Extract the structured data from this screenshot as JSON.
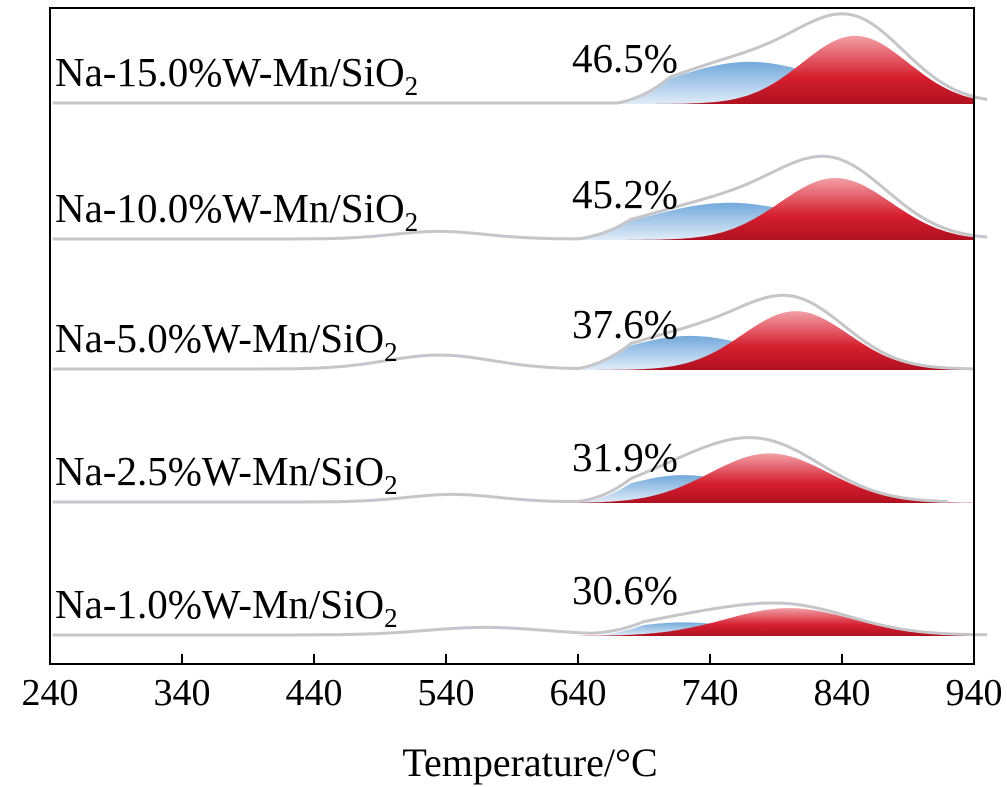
{
  "chart_data": {
    "type": "area",
    "title": "",
    "xlabel": "Temperature/°C",
    "ylabel": "",
    "xlim": [
      240,
      940
    ],
    "xticks": [
      "240",
      "340",
      "440",
      "540",
      "640",
      "740",
      "840",
      "940"
    ],
    "colors": {
      "envelope": "#c8c8cc",
      "low_temp_peak": "#5b9bd5",
      "high_temp_peak": "#d62030"
    },
    "series": [
      {
        "name": "Na-1.0%W-Mn/SiO2",
        "label_main": "Na-1.0%W-Mn/SiO",
        "label_sub": "2",
        "percent": "30.6%",
        "low_peak": {
          "center": 720,
          "width": 45,
          "height": 0.22,
          "start": 650
        },
        "high_peak": {
          "center": 800,
          "width": 48,
          "height": 0.45
        },
        "envelope_bumps": [
          {
            "center": 570,
            "width": 45,
            "height": 0.12
          }
        ],
        "envelope_end": 950
      },
      {
        "name": "Na-2.5%W-Mn/SiO2",
        "label_main": "Na-2.5%W-Mn/SiO",
        "label_sub": "2",
        "percent": "31.9%",
        "low_peak": {
          "center": 720,
          "width": 48,
          "height": 0.45,
          "start": 640
        },
        "high_peak": {
          "center": 785,
          "width": 45,
          "height": 0.8
        },
        "envelope_bumps": [
          {
            "center": 545,
            "width": 35,
            "height": 0.12
          }
        ],
        "envelope_end": 920
      },
      {
        "name": "Na-5.0%W-Mn/SiO2",
        "label_main": "Na-5.0%W-Mn/SiO",
        "label_sub": "2",
        "percent": "37.6%",
        "low_peak": {
          "center": 725,
          "width": 55,
          "height": 0.55,
          "start": 640
        },
        "high_peak": {
          "center": 805,
          "width": 40,
          "height": 0.95
        },
        "envelope_bumps": [
          {
            "center": 535,
            "width": 40,
            "height": 0.22
          }
        ],
        "envelope_end": 940
      },
      {
        "name": "Na-10.0%W-Mn/SiO2",
        "label_main": "Na-10.0%W-Mn/SiO",
        "label_sub": "2",
        "percent": "45.2%",
        "low_peak": {
          "center": 755,
          "width": 65,
          "height": 0.6,
          "start": 640
        },
        "high_peak": {
          "center": 835,
          "width": 42,
          "height": 1.0
        },
        "envelope_bumps": [
          {
            "center": 535,
            "width": 35,
            "height": 0.12
          }
        ],
        "envelope_end": 960
      },
      {
        "name": "Na-15.0%W-Mn/SiO2",
        "label_main": "Na-15.0%W-Mn/SiO",
        "label_sub": "2",
        "percent": "46.5%",
        "low_peak": {
          "center": 770,
          "width": 60,
          "height": 0.68,
          "start": 670
        },
        "high_peak": {
          "center": 850,
          "width": 40,
          "height": 1.1
        },
        "envelope_bumps": [],
        "envelope_end": 960
      }
    ]
  }
}
